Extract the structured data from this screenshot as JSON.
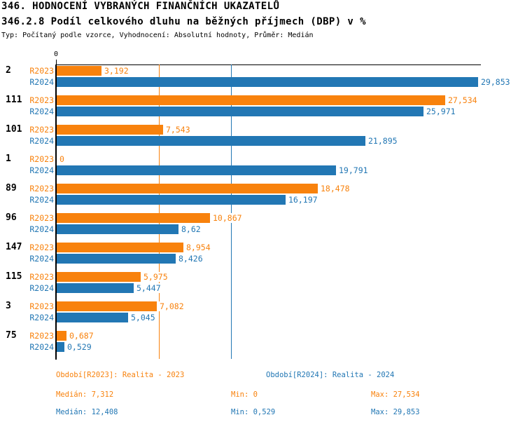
{
  "accent_colors": {
    "r2023_orange": "#F8820D",
    "r2024_blue": "#2277B4",
    "axis_black": "#000000"
  },
  "chart_data": {
    "type": "bar",
    "orientation": "horizontal",
    "title": "346. HODNOCENÍ VYBRANÝCH FINANČNÍCH UKAZATELŮ",
    "subtitle": "346.2.8 Podíl celkového dluhu na běžných příjmech (DBP) v %",
    "meta": "Typ: Počítaný podle vzorce, Vyhodnocení: Absolutní hodnoty, Průměr: Medián",
    "categories": [
      "2",
      "111",
      "101",
      "1",
      "89",
      "96",
      "147",
      "115",
      "3",
      "75"
    ],
    "series": [
      {
        "name": "R2023",
        "color": "#F8820D",
        "values": [
          3.192,
          27.534,
          7.543,
          0,
          18.478,
          10.867,
          8.954,
          5.975,
          7.082,
          0.687
        ],
        "labels": [
          "3,192",
          "27,534",
          "7,543",
          "0",
          "18,478",
          "10,867",
          "8,954",
          "5,975",
          "7,082",
          "0,687"
        ]
      },
      {
        "name": "R2024",
        "color": "#2277B4",
        "values": [
          29.853,
          25.971,
          21.895,
          19.791,
          16.197,
          8.62,
          8.426,
          5.447,
          5.045,
          0.529
        ],
        "labels": [
          "29,853",
          "25,971",
          "21,895",
          "19,791",
          "16,197",
          "8,62",
          "8,426",
          "5,447",
          "5,045",
          "0,529"
        ]
      }
    ],
    "axis": {
      "zero_label": "0",
      "x_min": 0,
      "x_max": 30.1,
      "grid": "off",
      "legend_position": "none"
    },
    "median_lines": [
      {
        "series": "R2023",
        "value": 7.312,
        "color": "#F8820D"
      },
      {
        "series": "R2024",
        "value": 12.408,
        "color": "#2277B4"
      }
    ],
    "footer": {
      "r2023": {
        "period": "Období[R2023]: Realita - 2023",
        "median": "Medián: 7,312",
        "min": "Min: 0",
        "max": "Max: 27,534"
      },
      "r2024": {
        "period": "Období[R2024]: Realita - 2024",
        "median": "Medián: 12,408",
        "min": "Min: 0,529",
        "max": "Max: 29,853"
      }
    }
  }
}
